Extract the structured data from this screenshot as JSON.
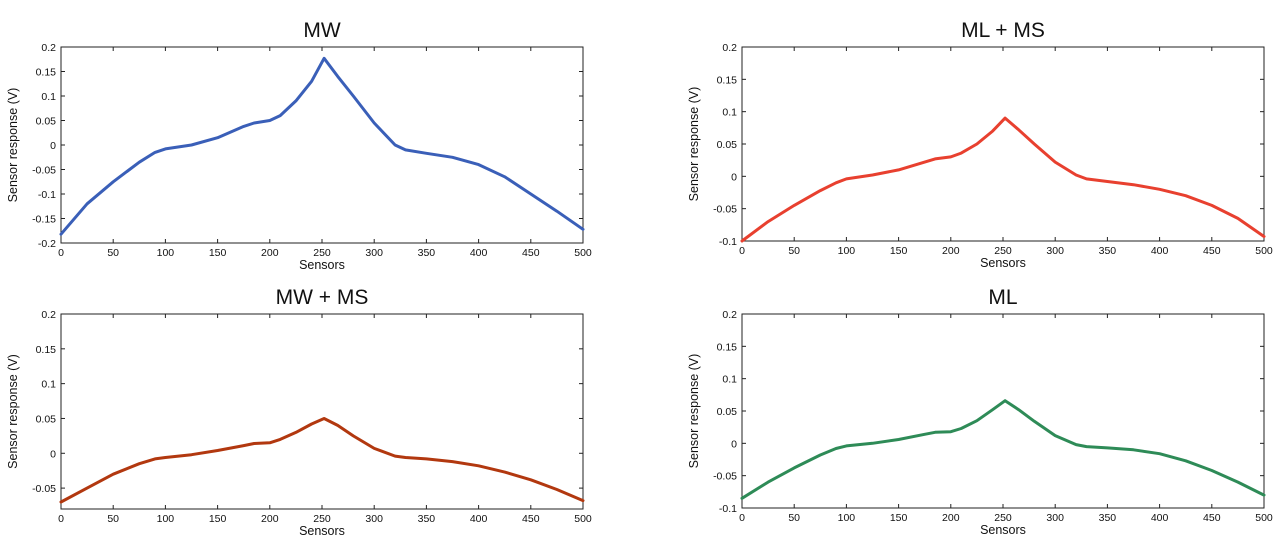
{
  "chart_data": [
    {
      "type": "line",
      "title": "MW",
      "xlabel": "Sensors",
      "ylabel": "Sensor response (V)",
      "xlim": [
        0,
        500
      ],
      "ylim": [
        -0.2,
        0.2
      ],
      "xticks": [
        0,
        50,
        100,
        150,
        200,
        250,
        300,
        350,
        400,
        450,
        500
      ],
      "yticks": [
        -0.2,
        -0.15,
        -0.1,
        -0.05,
        0,
        0.05,
        0.1,
        0.15,
        0.2
      ],
      "ytick_labels": [
        "-0.2",
        "-0.15",
        "-0.1",
        "-0.05",
        "0",
        "0.05",
        "0.1",
        "0.15",
        "0.2"
      ],
      "grid": false,
      "color": "#3a5fb8",
      "x": [
        0,
        25,
        50,
        75,
        90,
        100,
        125,
        150,
        175,
        185,
        200,
        210,
        225,
        240,
        252,
        265,
        280,
        300,
        320,
        330,
        350,
        375,
        400,
        425,
        450,
        475,
        500
      ],
      "y": [
        -0.182,
        -0.12,
        -0.075,
        -0.035,
        -0.015,
        -0.008,
        0.0,
        0.015,
        0.038,
        0.045,
        0.05,
        0.06,
        0.09,
        0.13,
        0.177,
        0.14,
        0.1,
        0.045,
        0.0,
        -0.01,
        -0.017,
        -0.025,
        -0.04,
        -0.065,
        -0.1,
        -0.135,
        -0.172
      ]
    },
    {
      "type": "line",
      "title": "ML + MS",
      "xlabel": "Sensors",
      "ylabel": "Sensor response (V)",
      "xlim": [
        0,
        500
      ],
      "ylim": [
        -0.1,
        0.2
      ],
      "xticks": [
        0,
        50,
        100,
        150,
        200,
        250,
        300,
        350,
        400,
        450,
        500
      ],
      "yticks": [
        -0.1,
        -0.05,
        0,
        0.05,
        0.1,
        0.15,
        0.2
      ],
      "ytick_labels": [
        "-0.1",
        "-0.05",
        "0",
        "0.05",
        "0.1",
        "0.15",
        "0.2"
      ],
      "grid": false,
      "color": "#e8402f",
      "x": [
        0,
        25,
        50,
        75,
        90,
        100,
        125,
        150,
        175,
        185,
        200,
        210,
        225,
        240,
        252,
        265,
        280,
        300,
        320,
        330,
        350,
        375,
        400,
        425,
        450,
        475,
        500
      ],
      "y": [
        -0.1,
        -0.07,
        -0.045,
        -0.022,
        -0.01,
        -0.004,
        0.002,
        0.01,
        0.022,
        0.027,
        0.03,
        0.036,
        0.05,
        0.07,
        0.09,
        0.072,
        0.05,
        0.022,
        0.002,
        -0.004,
        -0.008,
        -0.013,
        -0.02,
        -0.03,
        -0.045,
        -0.065,
        -0.093
      ]
    },
    {
      "type": "line",
      "title": "MW + MS",
      "xlabel": "Sensors",
      "ylabel": "Sensor response (V)",
      "xlim": [
        0,
        500
      ],
      "ylim": [
        -0.08,
        0.2
      ],
      "xticks": [
        0,
        50,
        100,
        150,
        200,
        250,
        300,
        350,
        400,
        450,
        500
      ],
      "yticks": [
        -0.05,
        0,
        0.05,
        0.1,
        0.15,
        0.2
      ],
      "ytick_labels": [
        "-0.05",
        "0",
        "0.05",
        "0.1",
        "0.15",
        "0.2"
      ],
      "grid": false,
      "color": "#b2380f",
      "x": [
        0,
        25,
        50,
        75,
        90,
        100,
        125,
        150,
        175,
        185,
        200,
        210,
        225,
        240,
        252,
        265,
        280,
        300,
        320,
        330,
        350,
        375,
        400,
        425,
        450,
        475,
        500
      ],
      "y": [
        -0.07,
        -0.05,
        -0.03,
        -0.015,
        -0.008,
        -0.006,
        -0.002,
        0.004,
        0.011,
        0.014,
        0.015,
        0.02,
        0.03,
        0.042,
        0.05,
        0.04,
        0.025,
        0.007,
        -0.004,
        -0.006,
        -0.008,
        -0.012,
        -0.018,
        -0.027,
        -0.038,
        -0.052,
        -0.068
      ]
    },
    {
      "type": "line",
      "title": "ML",
      "xlabel": "Sensors",
      "ylabel": "Sensor response (V)",
      "xlim": [
        0,
        500
      ],
      "ylim": [
        -0.1,
        0.2
      ],
      "xticks": [
        0,
        50,
        100,
        150,
        200,
        250,
        300,
        350,
        400,
        450,
        500
      ],
      "yticks": [
        -0.1,
        -0.05,
        0,
        0.05,
        0.1,
        0.15,
        0.2
      ],
      "ytick_labels": [
        "-0.1",
        "-0.05",
        "0",
        "0.05",
        "0.1",
        "0.15",
        "0.2"
      ],
      "grid": false,
      "color": "#2e8b57",
      "x": [
        0,
        25,
        50,
        75,
        90,
        100,
        125,
        150,
        175,
        185,
        200,
        210,
        225,
        240,
        252,
        265,
        280,
        300,
        320,
        330,
        350,
        375,
        400,
        425,
        450,
        475,
        500
      ],
      "y": [
        -0.085,
        -0.06,
        -0.038,
        -0.018,
        -0.008,
        -0.004,
        0.0,
        0.006,
        0.014,
        0.017,
        0.018,
        0.023,
        0.035,
        0.052,
        0.066,
        0.052,
        0.034,
        0.012,
        -0.002,
        -0.005,
        -0.007,
        -0.01,
        -0.016,
        -0.027,
        -0.042,
        -0.06,
        -0.08
      ]
    }
  ]
}
